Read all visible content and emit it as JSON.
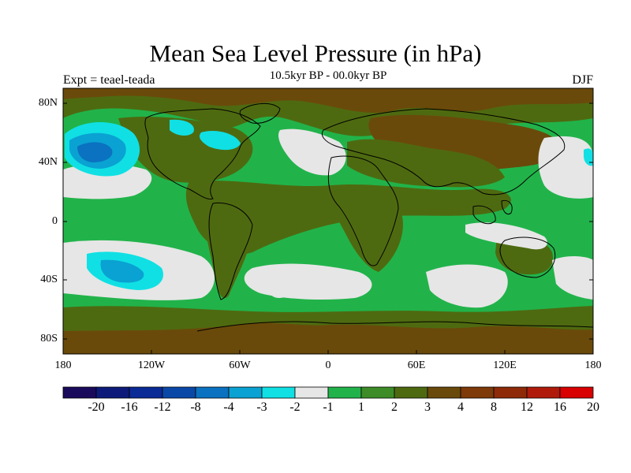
{
  "title": "Mean Sea Level Pressure (in hPa)",
  "subtitle_left": "Expt = teael-teada",
  "subtitle_center": "10.5kyr BP - 00.0kyr BP",
  "subtitle_right": "DJF",
  "map": {
    "lat_labels": [
      "80N",
      "40N",
      "0",
      "40S",
      "80S"
    ],
    "lon_labels": [
      "180",
      "120W",
      "60W",
      "0",
      "60E",
      "120E",
      "180"
    ],
    "lat_range": [
      -90,
      90
    ],
    "lon_range": [
      -180,
      180
    ]
  },
  "colorbar": {
    "colors": [
      "#1a0a5c",
      "#0d1a7a",
      "#0a2a96",
      "#0a48a8",
      "#0a72c0",
      "#0aa2d2",
      "#10e0e4",
      "#e6e6e6",
      "#21b34a",
      "#3e8c28",
      "#4e6a10",
      "#6a4a0a",
      "#7e3a08",
      "#8e2a08",
      "#b01a0a",
      "#d80000"
    ],
    "labels": [
      "-20",
      "-16",
      "-12",
      "-8",
      "-4",
      "-3",
      "-2",
      "-1",
      "1",
      "2",
      "3",
      "4",
      "8",
      "12",
      "16",
      "20"
    ]
  },
  "palette": {
    "white_band": "#e6e6e6",
    "green": "#21b34a",
    "olive": "#4e6a10",
    "brown": "#6a4a0a",
    "cyan": "#10e0e4",
    "light_blue": "#0aa2d2",
    "blue": "#0a72c0"
  }
}
